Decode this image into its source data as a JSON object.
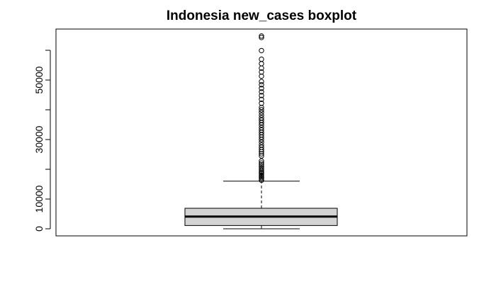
{
  "chart_data": {
    "type": "boxplot",
    "title": "Indonesia new_cases boxplot",
    "xlabel": "",
    "ylabel": "",
    "ylim": [
      -1500,
      65000
    ],
    "yticks": [
      0,
      10000,
      30000,
      50000
    ],
    "ytick_labels": [
      "0",
      "10000",
      "30000",
      "50000"
    ],
    "grid": false,
    "series": [
      {
        "min": 0,
        "q1": 1100,
        "median": 4100,
        "q3": 6900,
        "whisker_low": 0,
        "whisker_high": 16000,
        "outliers": [
          16300,
          16800,
          17200,
          17600,
          18000,
          18500,
          18900,
          19300,
          19800,
          20300,
          20900,
          21500,
          22100,
          22800,
          24500,
          25200,
          25900,
          26600,
          27400,
          28200,
          29100,
          30000,
          30800,
          31600,
          32400,
          33200,
          34000,
          34900,
          35700,
          36500,
          37300,
          38200,
          39100,
          40000,
          40800,
          42200,
          43500,
          44800,
          46000,
          47200,
          48400,
          49500,
          51300,
          52700,
          54000,
          55500,
          57000,
          59900,
          64300,
          64800
        ]
      }
    ],
    "colors": {
      "box_fill": "#d3d3d3",
      "stroke": "#000000"
    }
  }
}
